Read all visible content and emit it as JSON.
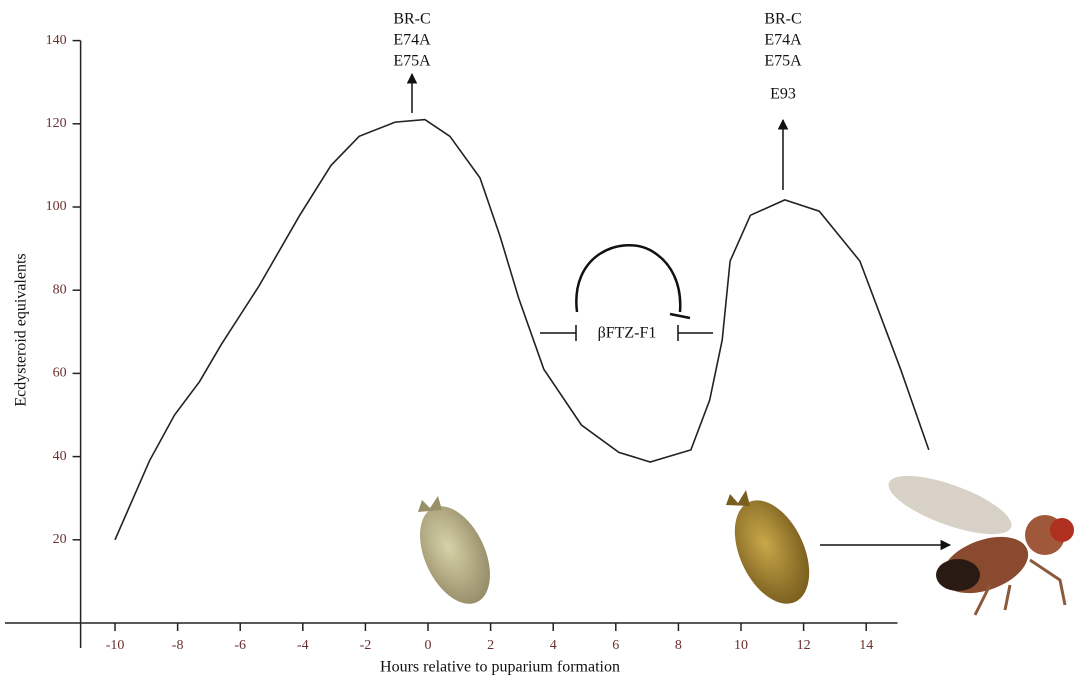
{
  "chart_data": {
    "type": "line",
    "x_label": "Hours relative to puparium formation",
    "y_label": "Ecdysteroid equivalents",
    "x": [
      -10,
      -8.9,
      -8.1,
      -7.3,
      -6.6,
      -5.4,
      -4.1,
      -3.1,
      -2.2,
      -1.05,
      -0.1,
      0.7,
      1.66,
      2.3,
      2.9,
      3.7,
      4.9,
      6.1,
      7.1,
      8.4,
      9.0,
      9.4,
      9.65,
      10.3,
      11.4,
      12.5,
      13.8,
      15.1,
      16.0
    ],
    "values": [
      20,
      39,
      50,
      58,
      67,
      81,
      98,
      110,
      117,
      120.4,
      121,
      117,
      107,
      93,
      78,
      61,
      47.6,
      41,
      38.7,
      41.6,
      53.6,
      68,
      87,
      98,
      101.7,
      99,
      87,
      61,
      41.6
    ],
    "color": "#222222",
    "xlim": [
      -11.1,
      15.0
    ],
    "xticks": [
      -10,
      -8,
      -6,
      -4,
      -2,
      0,
      2,
      4,
      6,
      8,
      10,
      12,
      14
    ],
    "ylim": [
      0,
      140
    ],
    "yticks": [
      20,
      40,
      60,
      80,
      100,
      120,
      140
    ],
    "grid": false,
    "annotations": [
      {
        "lines": [
          "BR-C",
          "E74A",
          "E75A"
        ]
      },
      {
        "lines": [
          "BR-C",
          "E74A",
          "E75A",
          "E93"
        ]
      },
      {
        "text": "βFTZ-F1"
      }
    ]
  }
}
